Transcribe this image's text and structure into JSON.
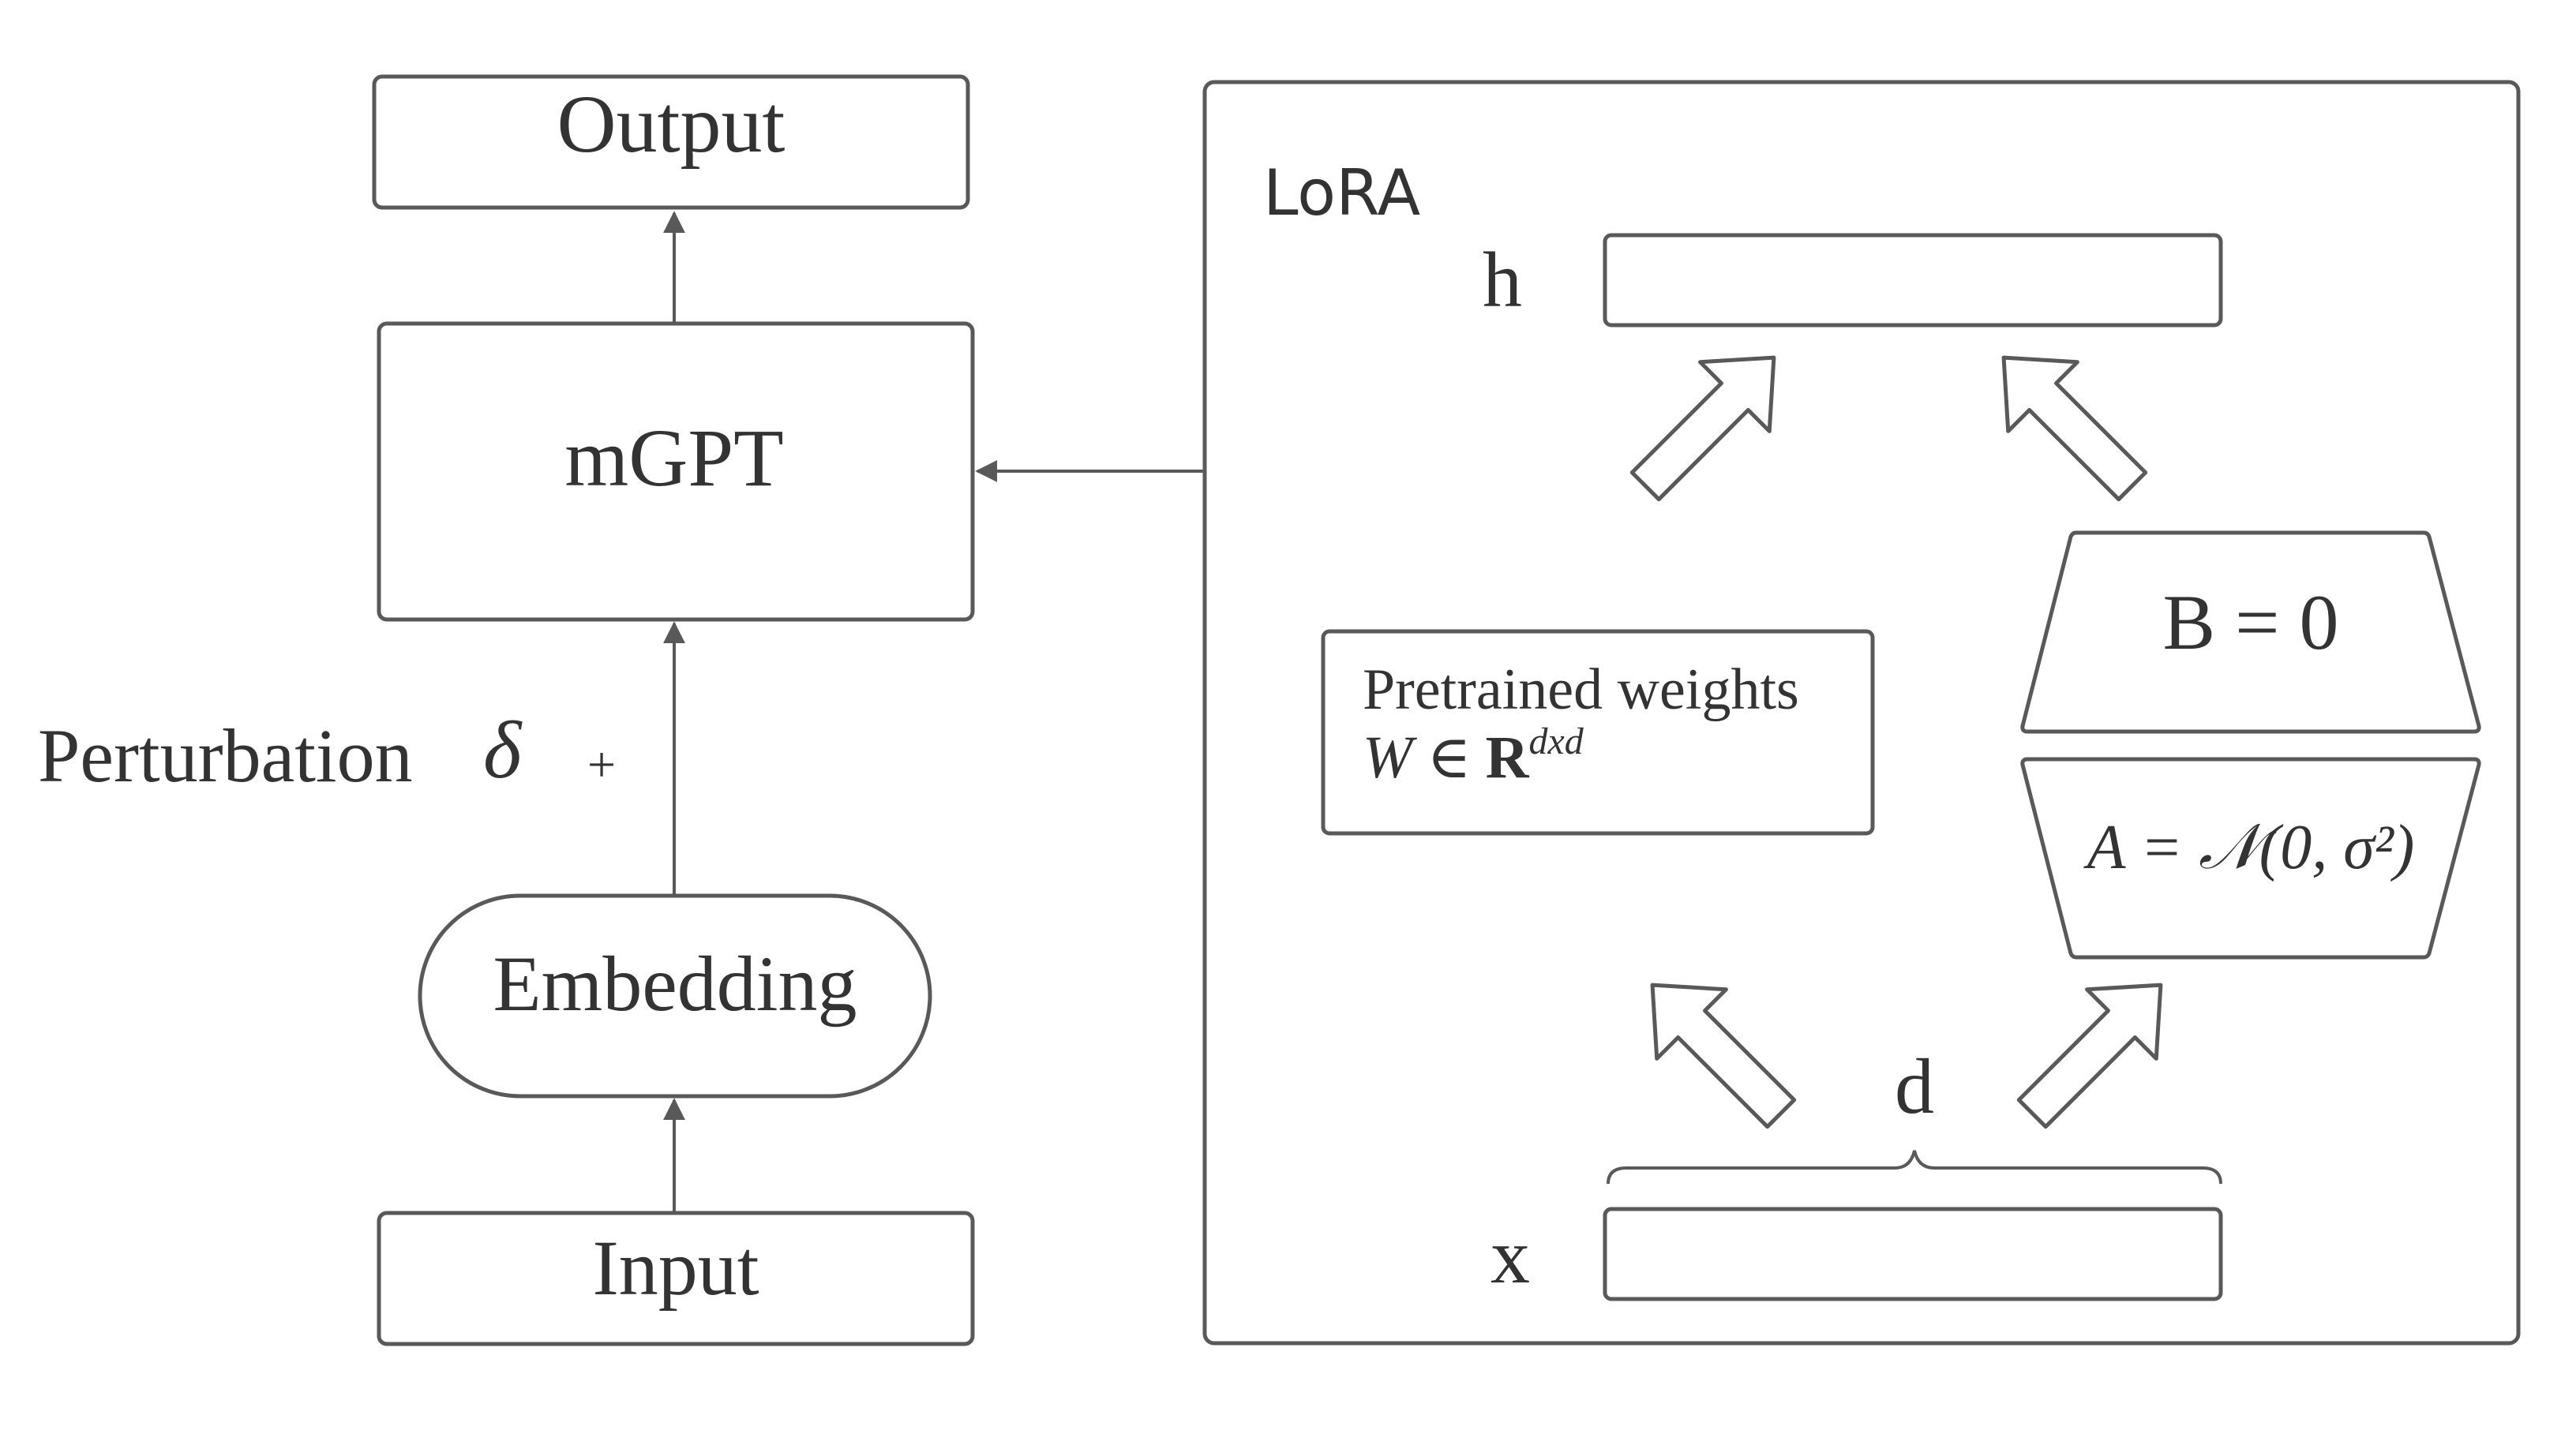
{
  "left_column": {
    "output_label": "Output",
    "model_label": "mGPT",
    "embedding_label": "Embedding",
    "input_label": "Input",
    "perturbation_label": "Perturbation",
    "perturbation_symbol": "δ",
    "plus_sign": "+"
  },
  "lora_panel": {
    "title": "LoRA",
    "h_label": "h",
    "x_label": "x",
    "d_label": "d",
    "pretrained_line1": "Pretrained weights",
    "pretrained_w": "W",
    "pretrained_in": "∈",
    "pretrained_R": "R",
    "pretrained_sup": "dxd",
    "b_label": "B = 0",
    "a_label": "A = 𝒩(0, σ²)"
  },
  "colors": {
    "stroke": "#595959",
    "text": "#333333",
    "background": "#ffffff"
  }
}
